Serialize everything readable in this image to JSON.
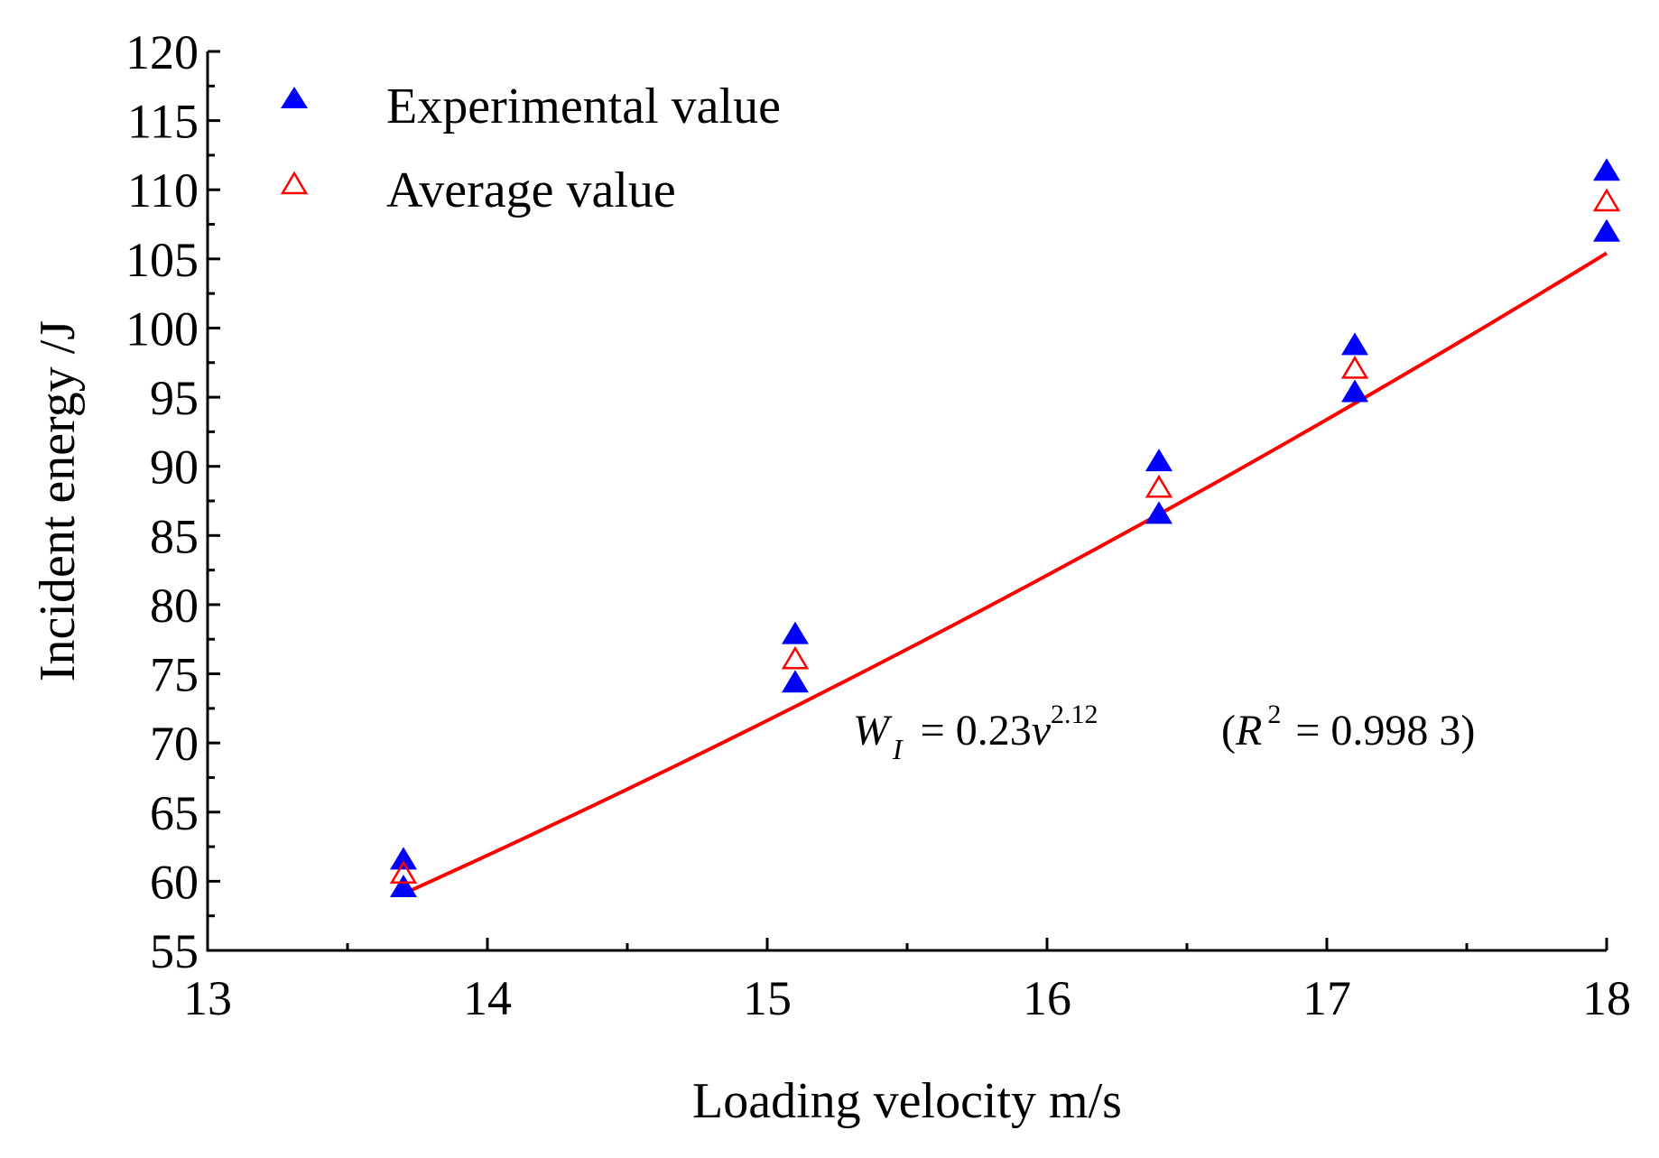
{
  "chart_data": {
    "type": "scatter",
    "title": "",
    "xlabel": "Loading velocity m/s",
    "ylabel": "Incident energy /J",
    "xlim": [
      13,
      18
    ],
    "ylim": [
      55,
      120
    ],
    "xticks": [
      13,
      14,
      15,
      16,
      17,
      18
    ],
    "yticks": [
      55,
      60,
      65,
      70,
      75,
      80,
      85,
      90,
      95,
      100,
      105,
      110,
      115,
      120
    ],
    "x_tick_labels": [
      "13",
      "14",
      "15",
      "16",
      "17",
      "18"
    ],
    "y_tick_labels": [
      "55",
      "60",
      "65",
      "70",
      "75",
      "80",
      "85",
      "90",
      "95",
      "100",
      "105",
      "110",
      "115",
      "120"
    ],
    "grid": false,
    "legend_position": "top-left",
    "series": [
      {
        "name": "Experimental value",
        "marker": "filled-triangle",
        "color": "#0000ff",
        "points": [
          {
            "x": 13.7,
            "y": 61.5
          },
          {
            "x": 13.7,
            "y": 59.5
          },
          {
            "x": 15.1,
            "y": 77.8
          },
          {
            "x": 15.1,
            "y": 74.3
          },
          {
            "x": 16.4,
            "y": 90.3
          },
          {
            "x": 16.4,
            "y": 86.5
          },
          {
            "x": 17.1,
            "y": 98.7
          },
          {
            "x": 17.1,
            "y": 95.3
          },
          {
            "x": 18.0,
            "y": 111.3
          },
          {
            "x": 18.0,
            "y": 106.9
          }
        ]
      },
      {
        "name": "Average value",
        "marker": "open-triangle",
        "color": "#ff0000",
        "points": [
          {
            "x": 13.7,
            "y": 60.5
          },
          {
            "x": 15.1,
            "y": 76.0
          },
          {
            "x": 16.4,
            "y": 88.4
          },
          {
            "x": 17.1,
            "y": 97.0
          },
          {
            "x": 18.0,
            "y": 109.1
          }
        ]
      }
    ],
    "fit": {
      "color": "#ff0000",
      "coefficient": 0.23,
      "exponent": 2.12,
      "x_range": [
        13.7,
        18.0
      ]
    },
    "annotation": {
      "lhs_var": "W",
      "lhs_sub": "I",
      "eq": " = 0.23",
      "var": "v",
      "sup": "2.12",
      "r_open": "(",
      "r_var": "R",
      "r_sup": "2",
      "r_eq": " = 0.998 3)"
    }
  }
}
